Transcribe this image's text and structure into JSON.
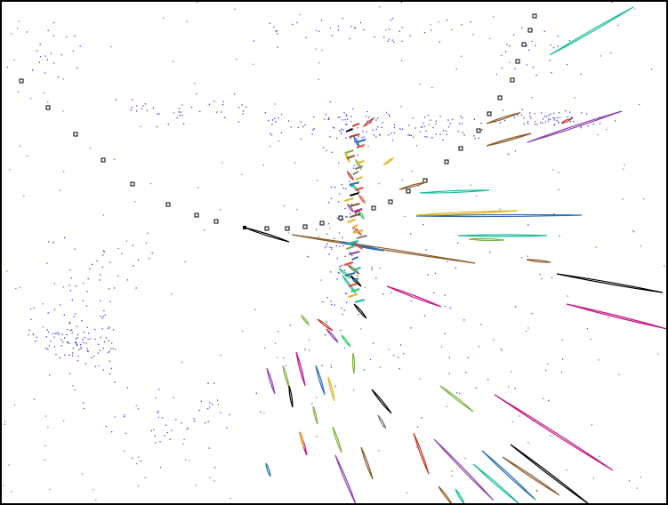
{
  "view": {
    "background_color": "#ffffff",
    "frame_color": "#000000",
    "hit_color": "#3b3bd6"
  },
  "track_colors": [
    "#000000",
    "#2ecc71",
    "#8e44ad",
    "#c0392b",
    "#e6b422",
    "#2a6fb5",
    "#1abc9c",
    "#8b5a2b",
    "#c71585",
    "#7cb342",
    "#808080",
    "#e74c3c"
  ]
}
